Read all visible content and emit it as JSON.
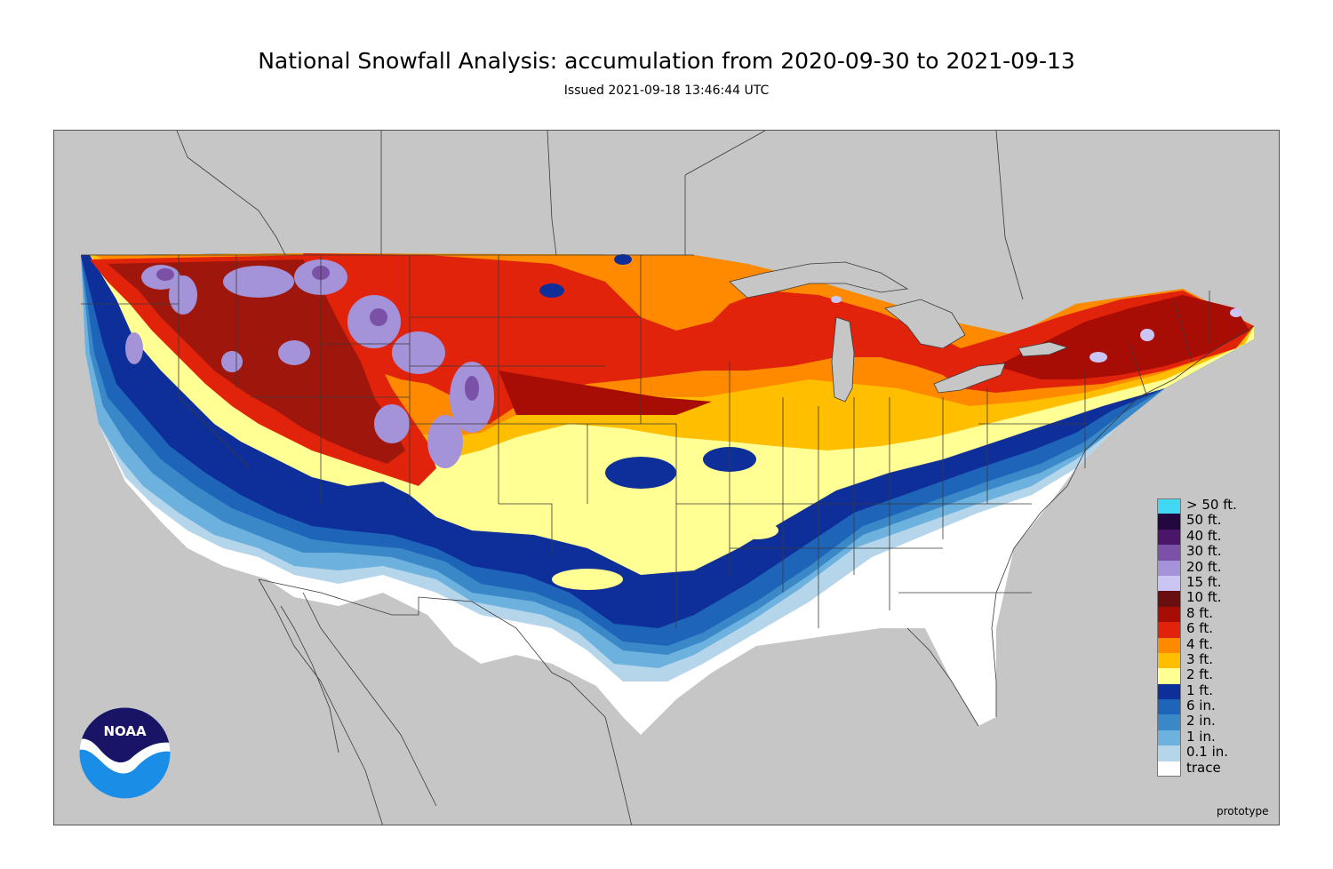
{
  "title": "National Snowfall Analysis: accumulation from 2020-09-30 to 2021-09-13",
  "subtitle": "Issued 2021-09-18 13:46:44 UTC",
  "footer_note": "prototype",
  "logo_text": "NOAA",
  "colors": {
    "background_land_other": "#c6c6c6",
    "boundary_lines": "#3a3a3a",
    "logo_navy": "#1a1466",
    "logo_blue": "#1a8ee6"
  },
  "legend": {
    "items": [
      {
        "label": "> 50 ft.",
        "color": "#41d8f4"
      },
      {
        "label": "50 ft.",
        "color": "#23083f"
      },
      {
        "label": "40 ft.",
        "color": "#4a1669"
      },
      {
        "label": "30 ft.",
        "color": "#7a51a6"
      },
      {
        "label": "20 ft.",
        "color": "#a493d8"
      },
      {
        "label": "15 ft.",
        "color": "#cbc5f4"
      },
      {
        "label": "10 ft.",
        "color": "#690f0f"
      },
      {
        "label": "8 ft.",
        "color": "#a80d05"
      },
      {
        "label": "6 ft.",
        "color": "#e1230b"
      },
      {
        "label": "4 ft.",
        "color": "#ff8a00"
      },
      {
        "label": "3 ft.",
        "color": "#ffbe00"
      },
      {
        "label": "2 ft.",
        "color": "#ffff94"
      },
      {
        "label": "1 ft.",
        "color": "#0e2f99"
      },
      {
        "label": "6 in.",
        "color": "#1e64b9"
      },
      {
        "label": "2 in.",
        "color": "#3a88c8"
      },
      {
        "label": "1 in.",
        "color": "#6db1de"
      },
      {
        "label": "0.1 in.",
        "color": "#b5d5ea"
      },
      {
        "label": "trace",
        "color": "#ffffff"
      }
    ]
  }
}
